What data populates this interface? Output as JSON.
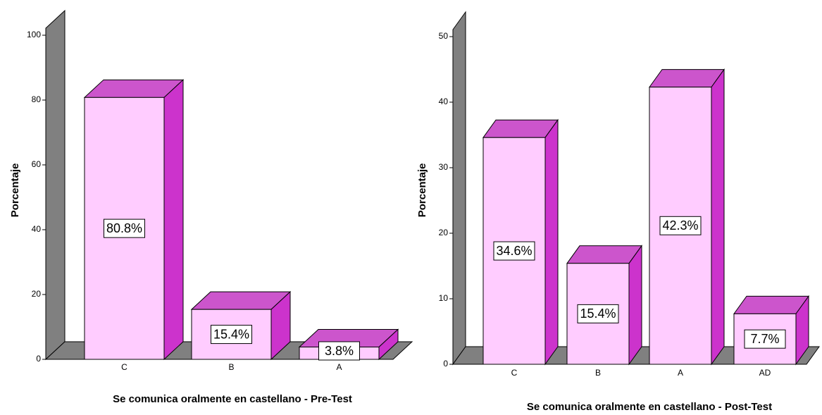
{
  "chart_data": [
    {
      "type": "bar3d",
      "x_label": "Se comunica oralmente en castellano - Pre-Test",
      "y_label": "Porcentaje",
      "categories": [
        "C",
        "B",
        "A"
      ],
      "values": [
        80.8,
        15.4,
        3.8
      ],
      "value_labels": [
        "80.8%",
        "15.4%",
        "3.8%"
      ],
      "color": "#ffccff",
      "ylim": [
        0,
        100
      ],
      "yticks": [
        0,
        20,
        40,
        60,
        80,
        100
      ]
    },
    {
      "type": "bar3d",
      "x_label": "Se comunica oralmente en castellano - Post-Test",
      "y_label": "Porcentaje",
      "categories": [
        "C",
        "B",
        "A",
        "AD"
      ],
      "values": [
        34.6,
        15.4,
        42.3,
        7.7
      ],
      "value_labels": [
        "34.6%",
        "15.4%",
        "42.3%",
        "7.7%"
      ],
      "color": "#ffccff",
      "ylim": [
        0,
        50
      ],
      "yticks": [
        0,
        10,
        20,
        30,
        40,
        50
      ]
    }
  ]
}
